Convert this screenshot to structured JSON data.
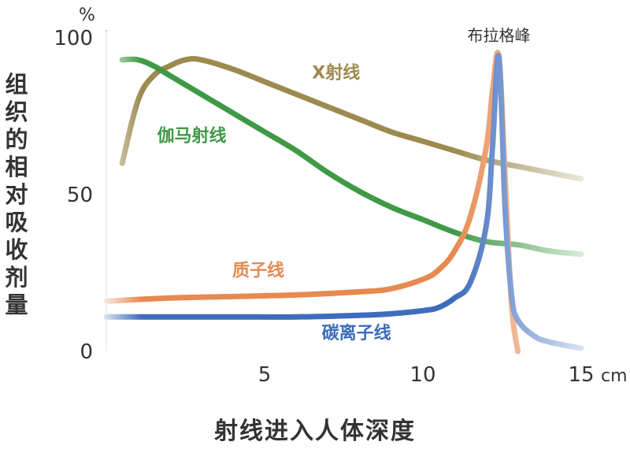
{
  "chart_data": {
    "type": "line",
    "xlabel": "射线进入人体深度",
    "ylabel": "组织的相对吸收剂量",
    "x_unit": "cm",
    "y_unit": "%",
    "xlim": [
      0,
      15
    ],
    "ylim": [
      0,
      100
    ],
    "x_ticks": [
      "5",
      "10",
      "15"
    ],
    "y_ticks": [
      "0",
      "50",
      "100"
    ],
    "annotations": [
      {
        "text": "布拉格峰",
        "x": 12.4,
        "y": 100
      }
    ],
    "series": [
      {
        "name": "X射线",
        "color": "#9c8a4f",
        "x": [
          0.5,
          1,
          1.5,
          2,
          2.5,
          3,
          4,
          5,
          6,
          7,
          8,
          9,
          10,
          11,
          12,
          13,
          14,
          15
        ],
        "y": [
          60,
          80,
          88,
          91,
          93,
          93,
          90,
          86,
          82,
          78,
          74,
          70,
          67,
          64,
          61,
          59,
          57,
          55
        ]
      },
      {
        "name": "伽马射线",
        "color": "#3f9a46",
        "x": [
          0.5,
          1,
          1.5,
          2,
          3,
          4,
          5,
          6,
          7,
          8,
          9,
          10,
          11,
          12,
          13,
          14,
          15
        ],
        "y": [
          93,
          93,
          91,
          88,
          82,
          76,
          70,
          64,
          57,
          51,
          46,
          42,
          38,
          35,
          34,
          32,
          31
        ]
      },
      {
        "name": "质子线",
        "color": "#e8894f",
        "x": [
          0,
          2,
          4,
          6,
          8,
          9,
          10,
          10.5,
          11,
          11.5,
          12,
          12.2,
          12.4,
          12.6,
          12.8,
          13
        ],
        "y": [
          16,
          17,
          17.5,
          18,
          19,
          20,
          23,
          26,
          32,
          43,
          65,
          83,
          94,
          55,
          15,
          0
        ]
      },
      {
        "name": "碳离子线",
        "color": "#3e6cbc",
        "x": [
          0,
          2,
          4,
          6,
          8,
          9,
          10,
          10.5,
          11,
          11.5,
          12,
          12.2,
          12.4,
          12.6,
          12.8,
          13,
          13.5,
          14,
          15
        ],
        "y": [
          11,
          11,
          11,
          11,
          11.5,
          12,
          13,
          14,
          17,
          22,
          40,
          65,
          94,
          45,
          18,
          10,
          5,
          3,
          1
        ]
      }
    ]
  }
}
